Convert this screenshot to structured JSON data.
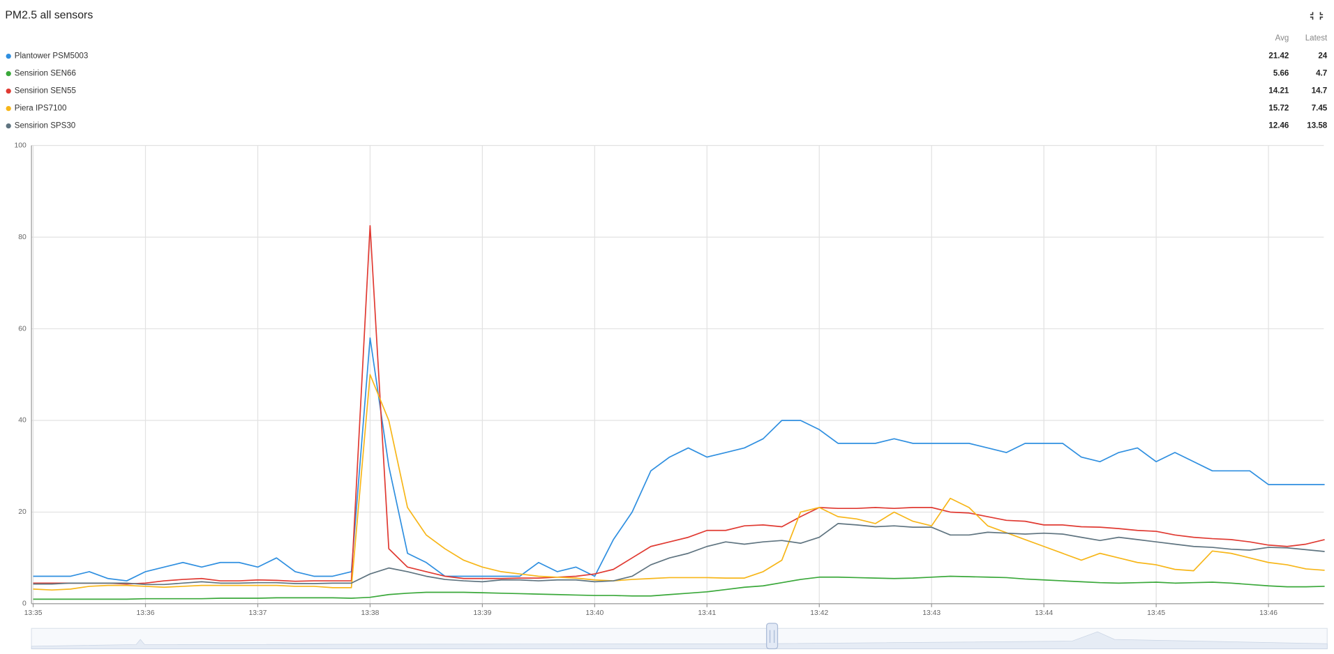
{
  "chart_data": {
    "type": "line",
    "title": "PM2.5 all sensors",
    "legend_headers": [
      "Avg",
      "Latest"
    ],
    "categories": [
      "13:35",
      null,
      null,
      null,
      null,
      null,
      "13:36",
      null,
      null,
      null,
      null,
      null,
      "13:37",
      null,
      null,
      null,
      null,
      null,
      "13:38",
      null,
      null,
      null,
      null,
      null,
      "13:39",
      null,
      null,
      null,
      null,
      null,
      "13:40",
      null,
      null,
      null,
      null,
      null,
      "13:41",
      null,
      null,
      null,
      null,
      null,
      "13:42",
      null,
      null,
      null,
      null,
      null,
      "13:43",
      null,
      null,
      null,
      null,
      null,
      "13:44",
      null,
      null,
      null,
      null,
      null,
      "13:45",
      null,
      null,
      null,
      null,
      null,
      "13:46",
      null,
      null,
      null
    ],
    "ylim": [
      0,
      100
    ],
    "yticks": [
      0,
      20,
      40,
      60,
      80,
      100
    ],
    "grid": true,
    "series": [
      {
        "name": "Plantower PSM5003",
        "color": "#2f8fe0",
        "avg": 21.42,
        "latest": 24,
        "values": [
          6,
          6,
          6,
          7,
          5.5,
          5,
          7,
          8,
          9,
          8,
          9,
          9,
          8,
          10,
          7,
          6,
          6,
          7,
          58,
          30,
          11,
          9,
          6,
          6,
          6,
          6,
          6,
          9,
          7,
          8,
          6,
          14,
          20,
          29,
          32,
          34,
          32,
          33,
          34,
          36,
          40,
          40,
          38,
          35,
          35,
          35,
          36,
          35,
          35,
          35,
          35,
          34,
          33,
          35,
          35,
          35,
          32,
          31,
          33,
          34,
          31,
          33,
          31,
          29,
          29,
          29,
          26,
          26,
          26,
          26
        ]
      },
      {
        "name": "Sensirion SEN66",
        "color": "#3aa83a",
        "avg": 5.66,
        "latest": 4.7,
        "values": [
          1,
          1,
          1,
          1,
          1,
          1,
          1.1,
          1.1,
          1.1,
          1.1,
          1.2,
          1.2,
          1.2,
          1.3,
          1.3,
          1.3,
          1.3,
          1.2,
          1.4,
          2,
          2.3,
          2.5,
          2.5,
          2.5,
          2.4,
          2.3,
          2.2,
          2.1,
          2,
          1.9,
          1.8,
          1.8,
          1.7,
          1.7,
          2,
          2.3,
          2.6,
          3.1,
          3.6,
          3.9,
          4.6,
          5.3,
          5.8,
          5.8,
          5.7,
          5.6,
          5.5,
          5.6,
          5.8,
          6,
          5.9,
          5.8,
          5.7,
          5.4,
          5.2,
          5,
          4.8,
          4.6,
          4.5,
          4.6,
          4.7,
          4.5,
          4.6,
          4.7,
          4.5,
          4.2,
          3.9,
          3.7,
          3.7,
          3.8
        ]
      },
      {
        "name": "Sensirion SEN55",
        "color": "#e03a32",
        "avg": 14.21,
        "latest": 14.7,
        "values": [
          4.5,
          4.5,
          4.5,
          4.5,
          4.5,
          4.3,
          4.5,
          5,
          5.3,
          5.5,
          5,
          5,
          5.2,
          5.1,
          4.9,
          5,
          5,
          5,
          82.5,
          12,
          8,
          7,
          6,
          5.5,
          5.5,
          5.5,
          5.6,
          5.6,
          5.8,
          6,
          6.5,
          7.5,
          10,
          12.5,
          13.5,
          14.5,
          16,
          16,
          17,
          17.2,
          16.8,
          19,
          21,
          20.8,
          20.8,
          21,
          20.8,
          21,
          21,
          20,
          19.8,
          19,
          18.2,
          18,
          17.2,
          17.2,
          16.8,
          16.7,
          16.4,
          16,
          15.8,
          15,
          14.5,
          14.2,
          14,
          13.5,
          12.8,
          12.5,
          13,
          14
        ]
      },
      {
        "name": "Piera IPS7100",
        "color": "#f7b619",
        "avg": 15.72,
        "latest": 7.45,
        "values": [
          3.2,
          3,
          3.2,
          3.8,
          4,
          4,
          3.8,
          3.6,
          3.8,
          4,
          4,
          4,
          4,
          4,
          3.8,
          3.8,
          3.5,
          3.5,
          50,
          40,
          21,
          15,
          12,
          9.5,
          8,
          7,
          6.5,
          6,
          5.8,
          5.6,
          5.2,
          5,
          5.3,
          5.5,
          5.7,
          5.7,
          5.7,
          5.6,
          5.6,
          7,
          9.5,
          20,
          21,
          19,
          18.5,
          17.5,
          20,
          18,
          17,
          23,
          21,
          17,
          15.5,
          14,
          12.5,
          11,
          9.5,
          11,
          10,
          9,
          8.5,
          7.5,
          7.2,
          11.5,
          11,
          10,
          9,
          8.5,
          7.6,
          7.3
        ]
      },
      {
        "name": "Sensirion SPS30",
        "color": "#5f7480",
        "avg": 12.46,
        "latest": 13.58,
        "values": [
          4.3,
          4.3,
          4.5,
          4.5,
          4.5,
          4.5,
          4.2,
          4.2,
          4.5,
          4.8,
          4.5,
          4.5,
          4.6,
          4.6,
          4.4,
          4.4,
          4.5,
          4.5,
          6.5,
          7.8,
          7,
          6,
          5.3,
          5,
          4.8,
          5.2,
          5.2,
          5,
          5.2,
          5.2,
          4.8,
          5,
          6,
          8.5,
          10,
          11,
          12.5,
          13.5,
          13,
          13.5,
          13.8,
          13.2,
          14.5,
          17.5,
          17.2,
          16.8,
          17,
          16.7,
          16.7,
          15,
          15,
          15.6,
          15.4,
          15.2,
          15.4,
          15.2,
          14.5,
          13.8,
          14.5,
          14,
          13.5,
          13,
          12.5,
          12.3,
          11.9,
          11.7,
          12.3,
          12.2,
          11.8,
          11.4
        ]
      }
    ]
  }
}
